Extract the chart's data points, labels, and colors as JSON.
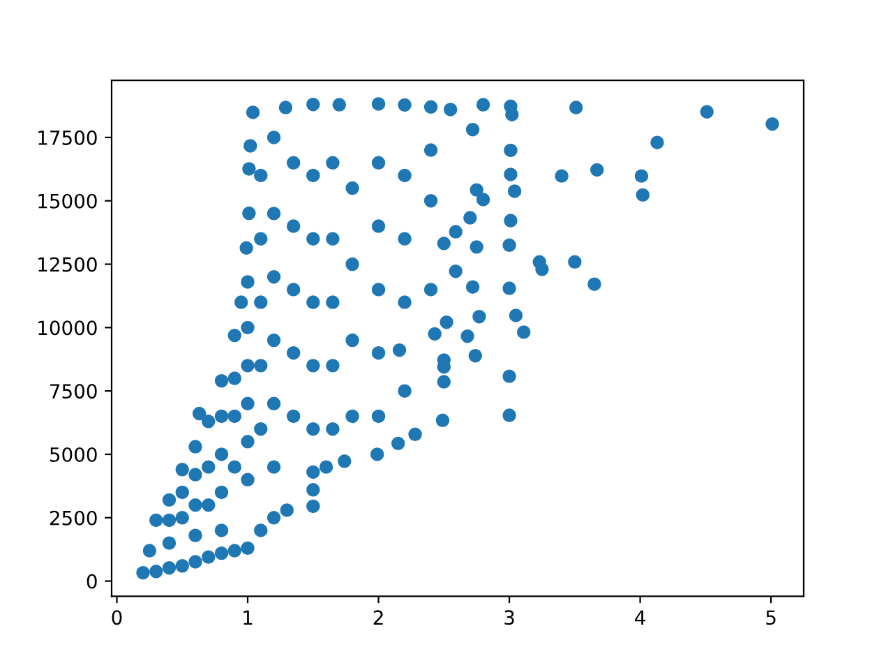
{
  "chart_data": {
    "type": "scatter",
    "color": "#1f77b4",
    "marker": "circle",
    "x": [
      0.2,
      0.3,
      0.4,
      0.5,
      0.6,
      0.7,
      0.8,
      0.9,
      1.0,
      1.1,
      1.2,
      1.3,
      1.5,
      1.5,
      1.5,
      1.6,
      1.74,
      1.99,
      2.15,
      2.28,
      2.49,
      2.5,
      2.5,
      2.5,
      2.16,
      2.43,
      2.52,
      2.59,
      2.5,
      2.59,
      0.25,
      0.3,
      0.4,
      0.5,
      0.6,
      0.63,
      0.7,
      0.8,
      0.9,
      0.95,
      0.99,
      1.01,
      1.01,
      1.02,
      1.04,
      1.29,
      1.5,
      1.7,
      2.0,
      2.2,
      2.4,
      2.55,
      2.8,
      0.4,
      0.4,
      0.5,
      0.5,
      0.6,
      0.6,
      0.6,
      0.7,
      0.7,
      0.8,
      0.8,
      0.8,
      0.8,
      0.9,
      0.9,
      0.9,
      1.0,
      1.0,
      1.0,
      1.0,
      1.0,
      1.0,
      1.1,
      1.1,
      1.1,
      1.1,
      1.1,
      1.2,
      1.2,
      1.2,
      1.2,
      1.2,
      1.2,
      1.35,
      1.35,
      1.35,
      1.35,
      1.35,
      1.5,
      1.5,
      1.5,
      1.5,
      1.5,
      1.65,
      1.65,
      1.65,
      1.65,
      1.65,
      1.8,
      1.8,
      1.8,
      1.8,
      2.0,
      2.0,
      2.0,
      2.0,
      2.0,
      2.2,
      2.2,
      2.2,
      2.2,
      2.4,
      2.4,
      2.4,
      2.68,
      2.74,
      2.77,
      2.72,
      2.75,
      2.7,
      2.8,
      2.75,
      2.72,
      3.01,
      3.02,
      3.01,
      3.01,
      3.04,
      3.01,
      3.0,
      3.23,
      3.25,
      3.5,
      3.65,
      3.0,
      3.05,
      3.11,
      3.0,
      3.0,
      3.51,
      4.51,
      5.01,
      4.13,
      3.4,
      3.67,
      4.01,
      4.02
    ],
    "values": [
      330,
      380,
      520,
      600,
      760,
      950,
      1100,
      1200,
      1300,
      2000,
      2500,
      2800,
      2950,
      3600,
      4300,
      4500,
      4730,
      5000,
      5430,
      5790,
      6340,
      7860,
      8450,
      8720,
      9110,
      9750,
      10210,
      12220,
      13320,
      13780,
      1200,
      2400,
      3200,
      4400,
      5300,
      6610,
      6300,
      7900,
      9690,
      11000,
      13140,
      14510,
      16260,
      17170,
      18490,
      18680,
      18800,
      18790,
      18820,
      18780,
      18700,
      18600,
      18790,
      1500,
      2400,
      2500,
      3500,
      1800,
      3000,
      4200,
      3000,
      4500,
      2000,
      3500,
      5000,
      6500,
      4500,
      6500,
      8000,
      4000,
      5500,
      7000,
      8500,
      10000,
      11800,
      6000,
      8500,
      11000,
      13500,
      16000,
      4500,
      7000,
      9500,
      12000,
      14500,
      17500,
      6500,
      9000,
      11500,
      14000,
      16500,
      6000,
      8500,
      11000,
      13500,
      16000,
      6000,
      8500,
      11000,
      13500,
      16500,
      6500,
      9500,
      12500,
      15500,
      6500,
      9000,
      11500,
      14000,
      16500,
      7500,
      11000,
      13500,
      16000,
      11500,
      15000,
      17000,
      9660,
      8890,
      10430,
      11600,
      13180,
      14330,
      15050,
      15430,
      17810,
      18730,
      18400,
      16990,
      16040,
      15380,
      14220,
      13250,
      12590,
      12300,
      12590,
      11710,
      11550,
      10480,
      9820,
      8080,
      6540,
      18680,
      18510,
      18030,
      17300,
      15980,
      16220,
      15980,
      15230
    ],
    "xlim": [
      -0.04,
      5.25
    ],
    "ylim": [
      -600,
      19750
    ],
    "xticks": [
      0,
      1,
      2,
      3,
      4,
      5
    ],
    "yticks": [
      0,
      2500,
      5000,
      7500,
      10000,
      12500,
      15000,
      17500
    ]
  }
}
